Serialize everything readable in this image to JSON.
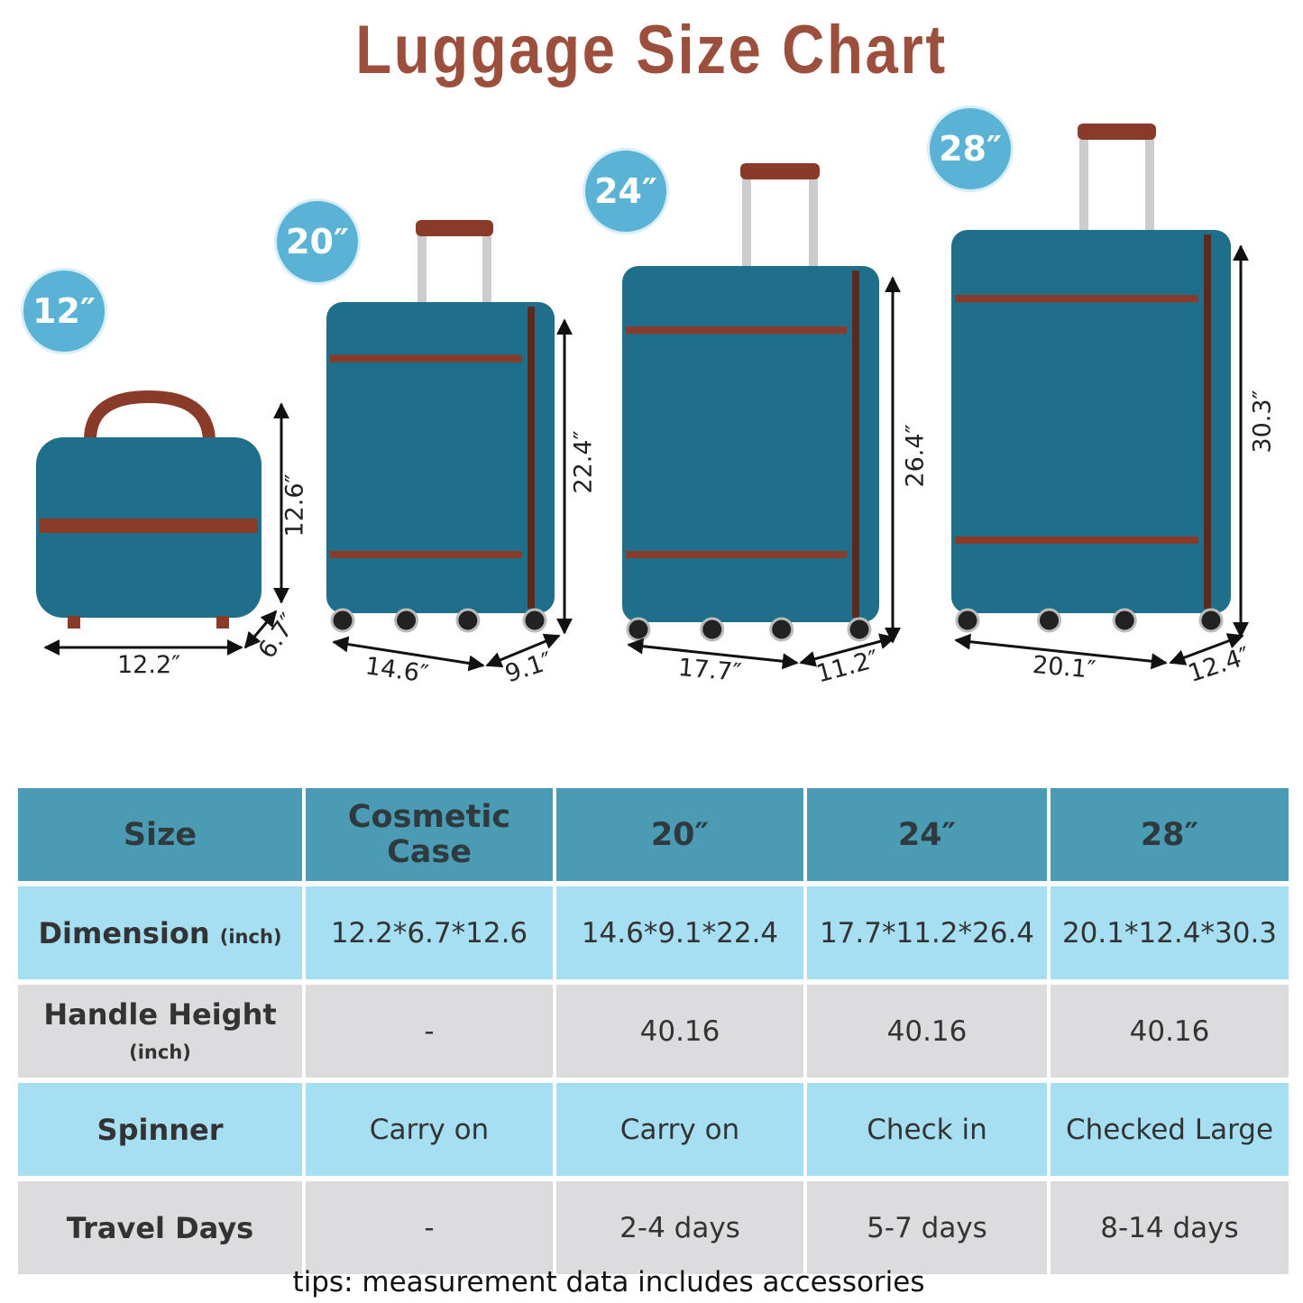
{
  "title": "Luggage Size Chart",
  "colors": {
    "title": "#9b4f3c",
    "badge": "#5ab3d4",
    "shell": "#1f6f8a",
    "trim": "#8a3a28",
    "header": "#4a9bb3",
    "row_blue": "#a6dff1",
    "row_gray": "#dcdcde"
  },
  "products": [
    {
      "badge": "12″",
      "width": "12.2″",
      "depth": "6.7″",
      "height": "12.6″"
    },
    {
      "badge": "20″",
      "width": "14.6″",
      "depth": "9.1″",
      "height": "22.4″"
    },
    {
      "badge": "24″",
      "width": "17.7″",
      "depth": "11.2″",
      "height": "26.4″"
    },
    {
      "badge": "28″",
      "width": "20.1″",
      "depth": "12.4″",
      "height": "30.3″"
    }
  ],
  "table": {
    "header": [
      "Size",
      "Cosmetic Case",
      "20″",
      "24″",
      "28″"
    ],
    "rows": [
      {
        "label": "Dimension",
        "unit": "(inch)",
        "cells": [
          "12.2*6.7*12.6",
          "14.6*9.1*22.4",
          "17.7*11.2*26.4",
          "20.1*12.4*30.3"
        ]
      },
      {
        "label": "Handle Height",
        "unit": "(inch)",
        "cells": [
          "-",
          "40.16",
          "40.16",
          "40.16"
        ]
      },
      {
        "label": "Spinner",
        "cells": [
          "Carry on",
          "Carry on",
          "Check in",
          "Checked Large"
        ]
      },
      {
        "label": "Travel Days",
        "cells": [
          "-",
          "2-4 days",
          "5-7 days",
          "8-14 days"
        ]
      }
    ]
  },
  "tip": "tips: measurement data includes accessories"
}
